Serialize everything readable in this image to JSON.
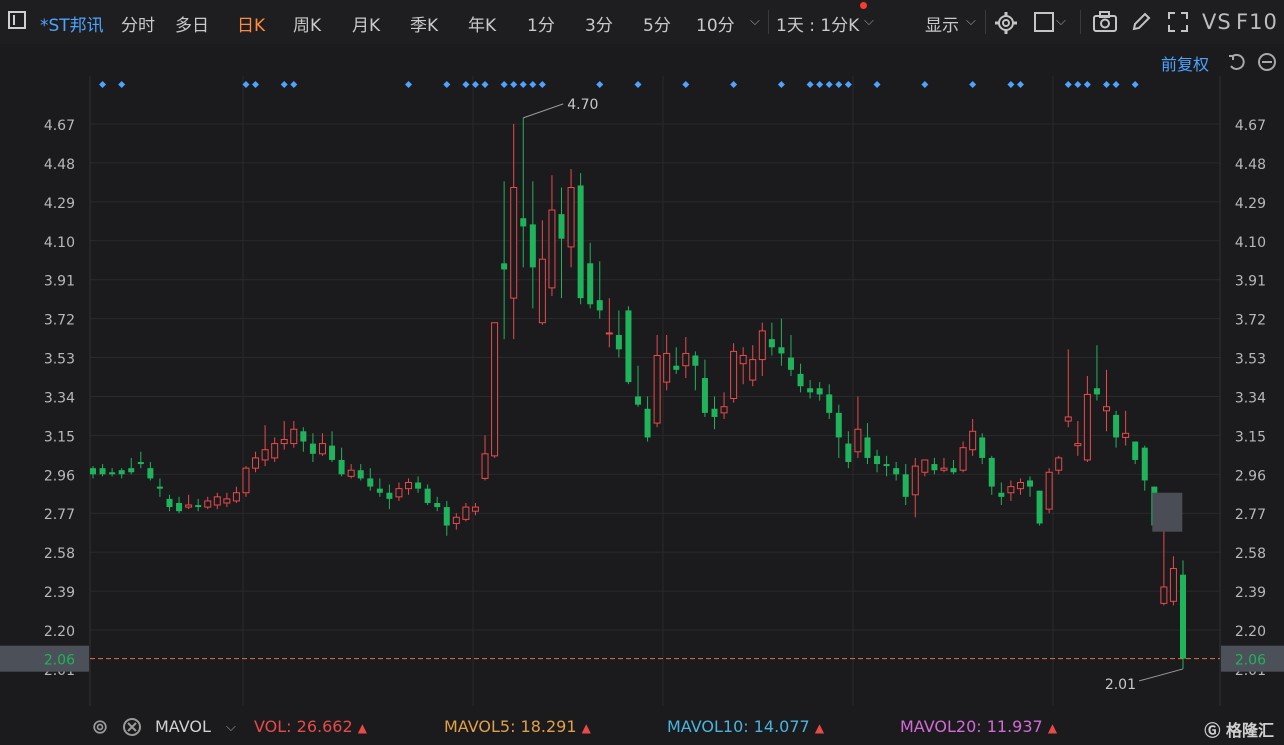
{
  "toolbar": {
    "title": "*ST邦讯",
    "tabs": [
      "分时",
      "多日",
      "日K",
      "周K",
      "月K",
      "季K",
      "年K",
      "1分",
      "3分",
      "5分",
      "10分"
    ],
    "active_tab": "日K",
    "interval": "1天 : 1分K",
    "display_label": "显示",
    "vs_label": "VS",
    "f10_label": "F10"
  },
  "subbar": {
    "adjust_label": "前复权"
  },
  "chart_data": {
    "type": "candlestick",
    "y_ticks": [
      4.67,
      4.48,
      4.29,
      4.1,
      3.91,
      3.72,
      3.53,
      3.34,
      3.15,
      2.96,
      2.77,
      2.58,
      2.39,
      2.2,
      2.01
    ],
    "ylim": [
      2.01,
      4.7
    ],
    "high_label": "4.70",
    "low_label": "2.01",
    "last_price": "2.06",
    "last_price_value": 2.06,
    "colors": {
      "up": "#e84a4a",
      "down": "#1fb35c",
      "marker": "#4da3ff",
      "price_line": "#e0743a"
    },
    "candles": [
      [
        2.99,
        3.0,
        2.96,
        2.94
      ],
      [
        2.99,
        3.01,
        2.96,
        2.95
      ],
      [
        2.97,
        2.99,
        2.96,
        2.95
      ],
      [
        2.98,
        2.99,
        2.96,
        2.94
      ],
      [
        2.99,
        3.04,
        2.97,
        2.96
      ],
      [
        3.02,
        3.07,
        3.01,
        2.99
      ],
      [
        2.99,
        3.02,
        2.94,
        2.93
      ],
      [
        2.9,
        2.94,
        2.89,
        2.85
      ],
      [
        2.84,
        2.86,
        2.8,
        2.78
      ],
      [
        2.82,
        2.85,
        2.78,
        2.77
      ],
      [
        2.8,
        2.86,
        2.81,
        2.79
      ],
      [
        2.81,
        2.84,
        2.8,
        2.78
      ],
      [
        2.8,
        2.85,
        2.83,
        2.79
      ],
      [
        2.81,
        2.87,
        2.85,
        2.79
      ],
      [
        2.82,
        2.87,
        2.84,
        2.8
      ],
      [
        2.83,
        2.9,
        2.87,
        2.82
      ],
      [
        2.87,
        3.0,
        2.99,
        2.85
      ],
      [
        2.99,
        3.07,
        3.04,
        2.97
      ],
      [
        3.03,
        3.2,
        3.08,
        3.0
      ],
      [
        3.04,
        3.14,
        3.11,
        3.02
      ],
      [
        3.11,
        3.22,
        3.13,
        3.08
      ],
      [
        3.11,
        3.22,
        3.18,
        3.09
      ],
      [
        3.17,
        3.19,
        3.12,
        3.07
      ],
      [
        3.11,
        3.16,
        3.06,
        3.02
      ],
      [
        3.06,
        3.16,
        3.11,
        3.05
      ],
      [
        3.1,
        3.17,
        3.03,
        3.02
      ],
      [
        3.03,
        3.09,
        2.96,
        2.95
      ],
      [
        2.95,
        3.01,
        2.98,
        2.94
      ],
      [
        2.98,
        3.01,
        2.94,
        2.93
      ],
      [
        2.94,
        2.99,
        2.9,
        2.88
      ],
      [
        2.89,
        2.94,
        2.87,
        2.85
      ],
      [
        2.87,
        2.91,
        2.84,
        2.79
      ],
      [
        2.85,
        2.92,
        2.89,
        2.83
      ],
      [
        2.89,
        2.94,
        2.92,
        2.86
      ],
      [
        2.92,
        2.95,
        2.89,
        2.87
      ],
      [
        2.89,
        2.91,
        2.82,
        2.81
      ],
      [
        2.82,
        2.85,
        2.8,
        2.78
      ],
      [
        2.8,
        2.83,
        2.71,
        2.66
      ],
      [
        2.72,
        2.77,
        2.75,
        2.69
      ],
      [
        2.74,
        2.82,
        2.8,
        2.73
      ],
      [
        2.78,
        2.82,
        2.8,
        2.76
      ],
      [
        2.94,
        3.15,
        3.06,
        2.93
      ],
      [
        3.05,
        3.7,
        3.7,
        3.04
      ],
      [
        3.99,
        4.39,
        3.96,
        3.62
      ],
      [
        3.82,
        4.67,
        4.36,
        3.62
      ],
      [
        4.21,
        4.7,
        4.17,
        3.97
      ],
      [
        4.18,
        4.39,
        3.97,
        3.77
      ],
      [
        3.7,
        4.2,
        4.01,
        3.69
      ],
      [
        3.87,
        4.42,
        4.25,
        3.83
      ],
      [
        4.23,
        4.36,
        4.11,
        3.82
      ],
      [
        4.07,
        4.45,
        4.36,
        3.97
      ],
      [
        4.37,
        4.43,
        3.82,
        3.79
      ],
      [
        3.99,
        4.09,
        3.79,
        3.77
      ],
      [
        3.81,
        4.0,
        3.76,
        3.72
      ],
      [
        3.65,
        3.82,
        3.65,
        3.58
      ],
      [
        3.64,
        3.76,
        3.57,
        3.53
      ],
      [
        3.76,
        3.78,
        3.41,
        3.4
      ],
      [
        3.34,
        3.49,
        3.3,
        3.29
      ],
      [
        3.28,
        3.34,
        3.14,
        3.12
      ],
      [
        3.21,
        3.64,
        3.54,
        3.19
      ],
      [
        3.41,
        3.64,
        3.55,
        3.37
      ],
      [
        3.49,
        3.58,
        3.47,
        3.45
      ],
      [
        3.49,
        3.63,
        3.55,
        3.43
      ],
      [
        3.54,
        3.56,
        3.49,
        3.37
      ],
      [
        3.43,
        3.52,
        3.26,
        3.24
      ],
      [
        3.28,
        3.34,
        3.24,
        3.18
      ],
      [
        3.26,
        3.36,
        3.29,
        3.23
      ],
      [
        3.33,
        3.6,
        3.56,
        3.31
      ],
      [
        3.5,
        3.58,
        3.54,
        3.4
      ],
      [
        3.42,
        3.59,
        3.52,
        3.39
      ],
      [
        3.52,
        3.7,
        3.66,
        3.44
      ],
      [
        3.62,
        3.7,
        3.58,
        3.54
      ],
      [
        3.58,
        3.72,
        3.55,
        3.49
      ],
      [
        3.53,
        3.64,
        3.47,
        3.44
      ],
      [
        3.45,
        3.5,
        3.39,
        3.36
      ],
      [
        3.38,
        3.42,
        3.36,
        3.33
      ],
      [
        3.38,
        3.41,
        3.35,
        3.32
      ],
      [
        3.35,
        3.4,
        3.26,
        3.23
      ],
      [
        3.26,
        3.3,
        3.14,
        3.04
      ],
      [
        3.11,
        3.17,
        3.02,
        2.99
      ],
      [
        3.07,
        3.34,
        3.18,
        3.04
      ],
      [
        3.14,
        3.21,
        3.04,
        3.01
      ],
      [
        3.05,
        3.08,
        3.01,
        2.97
      ],
      [
        3.01,
        3.05,
        3.0,
        2.95
      ],
      [
        2.99,
        3.02,
        2.96,
        2.93
      ],
      [
        2.96,
        3.01,
        2.85,
        2.81
      ],
      [
        2.86,
        3.04,
        3.0,
        2.75
      ],
      [
        2.97,
        3.03,
        3.03,
        2.95
      ],
      [
        3.01,
        3.04,
        2.98,
        2.96
      ],
      [
        2.98,
        3.04,
        2.99,
        2.97
      ],
      [
        2.99,
        3.03,
        2.97,
        2.96
      ],
      [
        2.98,
        3.12,
        3.09,
        2.97
      ],
      [
        3.08,
        3.23,
        3.17,
        3.05
      ],
      [
        3.14,
        3.16,
        3.04,
        3.01
      ],
      [
        3.04,
        3.05,
        2.9,
        2.86
      ],
      [
        2.87,
        2.92,
        2.85,
        2.81
      ],
      [
        2.87,
        2.93,
        2.9,
        2.83
      ],
      [
        2.89,
        2.94,
        2.92,
        2.86
      ],
      [
        2.93,
        2.95,
        2.9,
        2.85
      ],
      [
        2.88,
        2.88,
        2.72,
        2.71
      ],
      [
        2.79,
        2.99,
        2.97,
        2.77
      ],
      [
        2.98,
        3.05,
        3.04,
        2.96
      ],
      [
        3.22,
        3.57,
        3.24,
        3.19
      ],
      [
        3.1,
        3.22,
        3.11,
        3.05
      ],
      [
        3.03,
        3.44,
        3.35,
        3.02
      ],
      [
        3.38,
        3.59,
        3.35,
        3.32
      ],
      [
        3.27,
        3.47,
        3.29,
        3.17
      ],
      [
        3.25,
        3.27,
        3.14,
        3.09
      ],
      [
        3.14,
        3.27,
        3.16,
        3.1
      ],
      [
        3.12,
        3.12,
        3.03,
        3.01
      ],
      [
        3.09,
        3.1,
        2.93,
        2.88
      ],
      [
        2.9,
        2.9,
        2.71,
        2.7
      ],
      [
        2.33,
        2.7,
        2.41,
        2.32
      ],
      [
        2.34,
        2.56,
        2.5,
        2.32
      ],
      [
        2.47,
        2.54,
        2.06,
        2.01
      ]
    ],
    "markers": [
      1,
      3,
      16,
      17,
      20,
      21,
      33,
      37,
      39,
      40,
      41,
      43,
      44,
      45,
      46,
      47,
      53,
      57,
      62,
      67,
      72,
      75,
      76,
      77,
      78,
      79,
      82,
      87,
      92,
      96,
      97,
      102,
      103,
      104,
      106,
      107,
      109
    ]
  },
  "bottom": {
    "indicator": "MAVOL",
    "vol_label": "VOL: 26.662",
    "mavol5_label": "MAVOL5: 18.291",
    "mavol10_label": "MAVOL10: 14.077",
    "mavol20_label": "MAVOL20: 11.937",
    "logo_text": "格隆汇",
    "colors": {
      "vol": "#e84a4a",
      "mavol5": "#e0a04a",
      "mavol10": "#4ab4e0",
      "mavol20": "#d26ad8"
    }
  }
}
